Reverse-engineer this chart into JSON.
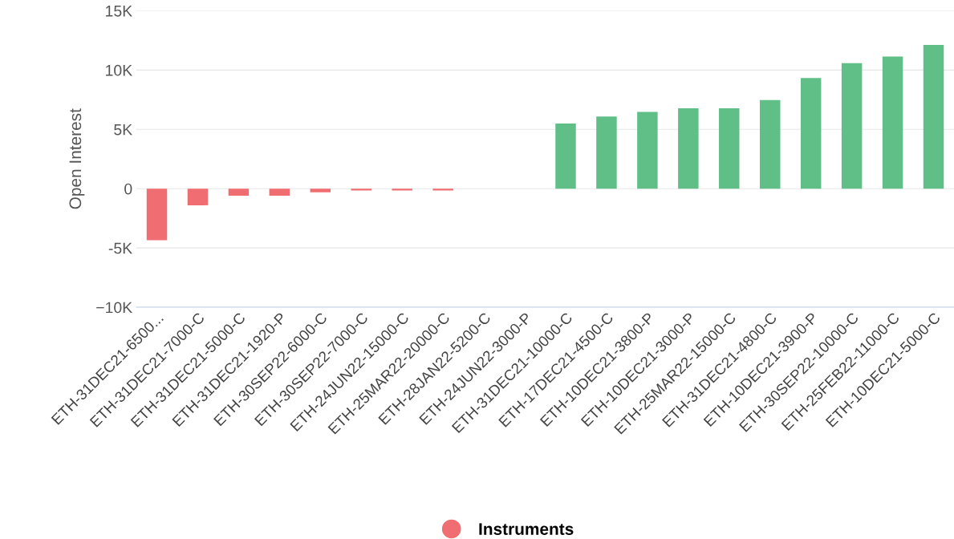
{
  "chart_data": {
    "type": "bar",
    "ylabel": "Open Interest",
    "categories": [
      "ETH-31DEC21-6500...",
      "ETH-31DEC21-7000-C",
      "ETH-31DEC21-5000-C",
      "ETH-31DEC21-1920-P",
      "ETH-30SEP22-6000-C",
      "ETH-30SEP22-7000-C",
      "ETH-24JUN22-15000-C",
      "ETH-25MAR22-20000-C",
      "ETH-28JAN22-5200-C",
      "ETH-24JUN22-3000-P",
      "ETH-31DEC21-10000-C",
      "ETH-17DEC21-4500-C",
      "ETH-10DEC21-3800-P",
      "ETH-10DEC21-3000-P",
      "ETH-25MAR22-15000-C",
      "ETH-31DEC21-4800-C",
      "ETH-10DEC21-3900-P",
      "ETH-30SEP22-10000-C",
      "ETH-25FEB22-11000-C",
      "ETH-10DEC21-5000-C"
    ],
    "series": [
      {
        "name": "Instruments",
        "color": "#f06e72",
        "colors": [
          "#f06e72",
          "#f06e72",
          "#f06e72",
          "#f06e72",
          "#f06e72",
          "#f06e72",
          "#f06e72",
          "#f06e72",
          "#f06e72",
          "#f06e72",
          "#5fbf86",
          "#5fbf86",
          "#5fbf86",
          "#5fbf86",
          "#5fbf86",
          "#5fbf86",
          "#5fbf86",
          "#5fbf86",
          "#5fbf86",
          "#5fbf86"
        ],
        "values": [
          -4350,
          -1400,
          -600,
          -600,
          -300,
          -150,
          -150,
          -150,
          0,
          0,
          5500,
          6080,
          6480,
          6780,
          6780,
          7470,
          9330,
          10580,
          11140,
          12120
        ]
      }
    ],
    "ylim": [
      -10000,
      15000
    ],
    "yticks": [
      {
        "value": -10000,
        "label": "−10K"
      },
      {
        "value": -5000,
        "label": "-5K"
      },
      {
        "value": 0,
        "label": "0"
      },
      {
        "value": 5000,
        "label": "5K"
      },
      {
        "value": 10000,
        "label": "10K"
      },
      {
        "value": 15000,
        "label": "15K"
      }
    ],
    "grid": "y",
    "legend": "bottom"
  }
}
